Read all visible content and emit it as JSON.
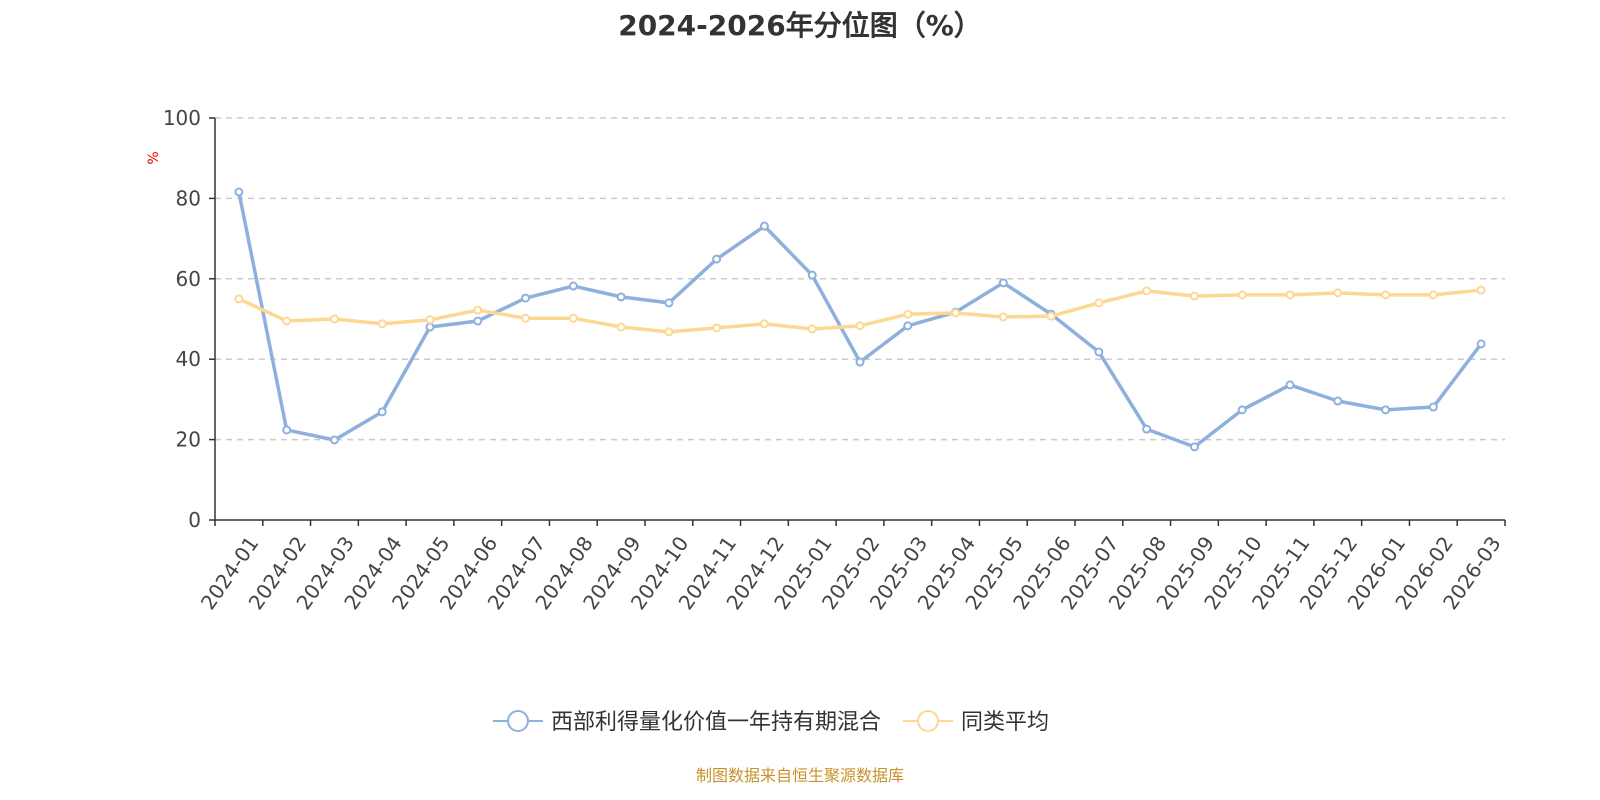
{
  "chart_data": {
    "type": "line",
    "title": "2024-2026年分位图（%）",
    "ylabel": "%",
    "ylim": [
      0,
      100
    ],
    "yticks": [
      0,
      20,
      40,
      60,
      80,
      100
    ],
    "grid": true,
    "legend_position": "bottom",
    "categories": [
      "2024-01",
      "2024-02",
      "2024-03",
      "2024-04",
      "2024-05",
      "2024-06",
      "2024-07",
      "2024-08",
      "2024-09",
      "2024-10",
      "2024-11",
      "2024-12",
      "2025-01",
      "2025-02",
      "2025-03",
      "2025-04",
      "2025-05",
      "2025-06",
      "2025-07",
      "2025-08",
      "2025-09",
      "2025-10",
      "2025-11",
      "2025-12",
      "2026-01",
      "2026-02",
      "2026-03"
    ],
    "series": [
      {
        "name": "西部利得量化价值一年持有期混合",
        "color": "#8eb0dd",
        "values": [
          81.6,
          22.4,
          19.9,
          26.9,
          48.0,
          49.5,
          55.2,
          58.2,
          55.5,
          54.0,
          64.9,
          73.1,
          60.9,
          39.3,
          48.3,
          51.7,
          59.0,
          51.2,
          41.8,
          22.6,
          18.2,
          27.4,
          33.6,
          29.6,
          27.4,
          28.1,
          43.8
        ]
      },
      {
        "name": "同类平均",
        "color": "#fdd894",
        "values": [
          55.0,
          49.5,
          50.0,
          48.8,
          49.8,
          52.2,
          50.2,
          50.2,
          48.0,
          46.8,
          47.8,
          48.8,
          47.5,
          48.3,
          51.2,
          51.5,
          50.5,
          50.7,
          54.0,
          57.0,
          55.7,
          56.0,
          56.0,
          56.5,
          56.0,
          56.0,
          57.2
        ]
      }
    ]
  },
  "source": "制图数据来自恒生聚源数据库"
}
